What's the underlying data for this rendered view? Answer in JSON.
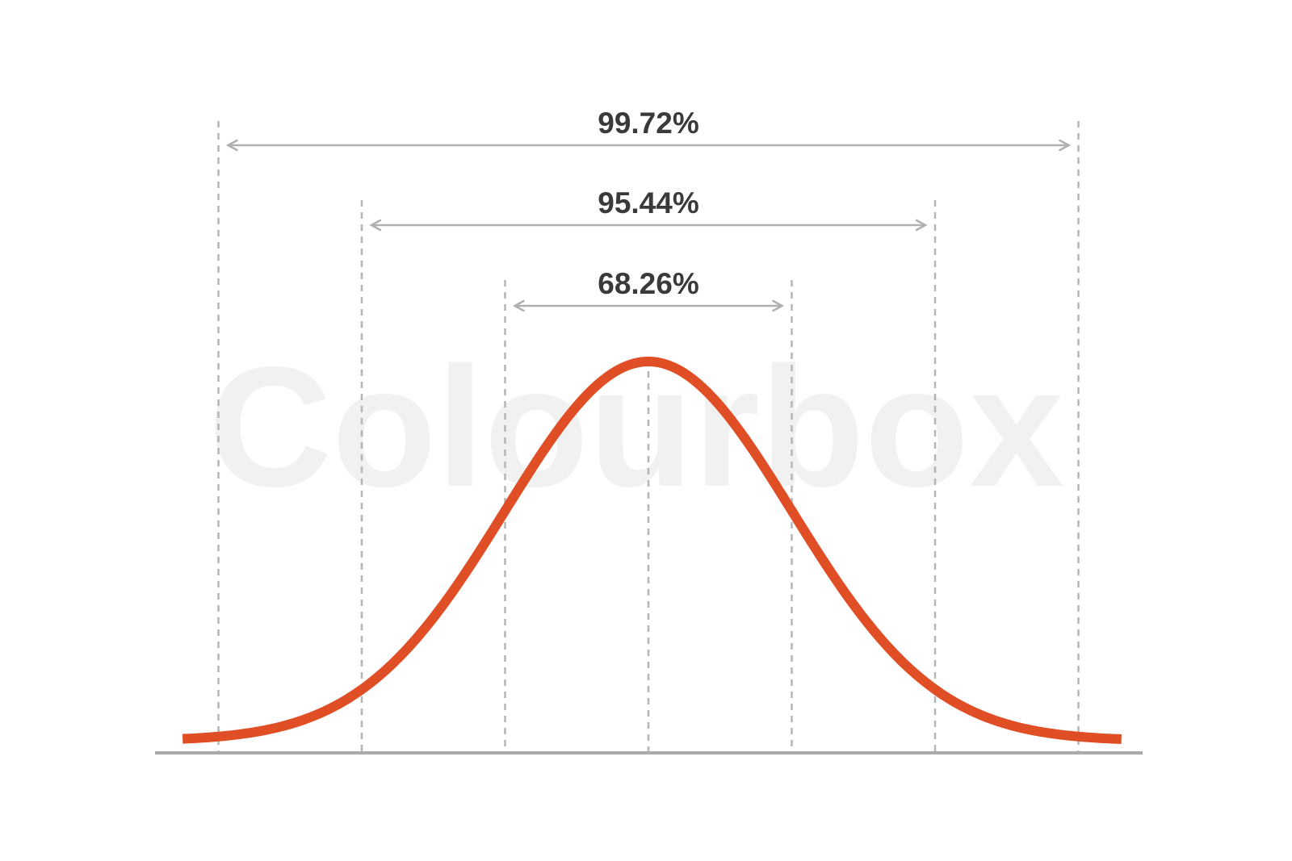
{
  "watermark": {
    "text": "Colourbox"
  },
  "chart_data": {
    "type": "line",
    "title": "",
    "xlabel": "",
    "ylabel": "",
    "xlim": [
      -3.25,
      3.3
    ],
    "sigma_lines": [
      -3,
      -2,
      -1,
      0,
      1,
      2,
      3
    ],
    "ranges": [
      {
        "label": "68.26%",
        "from": -1,
        "to": 1
      },
      {
        "label": "95.44%",
        "from": -2,
        "to": 2
      },
      {
        "label": "99.72%",
        "from": -3,
        "to": 3
      }
    ],
    "series": [
      {
        "distribution": "normal",
        "mean": 0,
        "sd": 1
      }
    ],
    "grid": false,
    "colors": {
      "curve": "#e04e26",
      "guides": "#b5b5b5",
      "arrows": "#b0b0b0",
      "baseline": "#aaaaaa",
      "label": "#3a3a3a",
      "watermark": "#f1f1f1"
    }
  }
}
